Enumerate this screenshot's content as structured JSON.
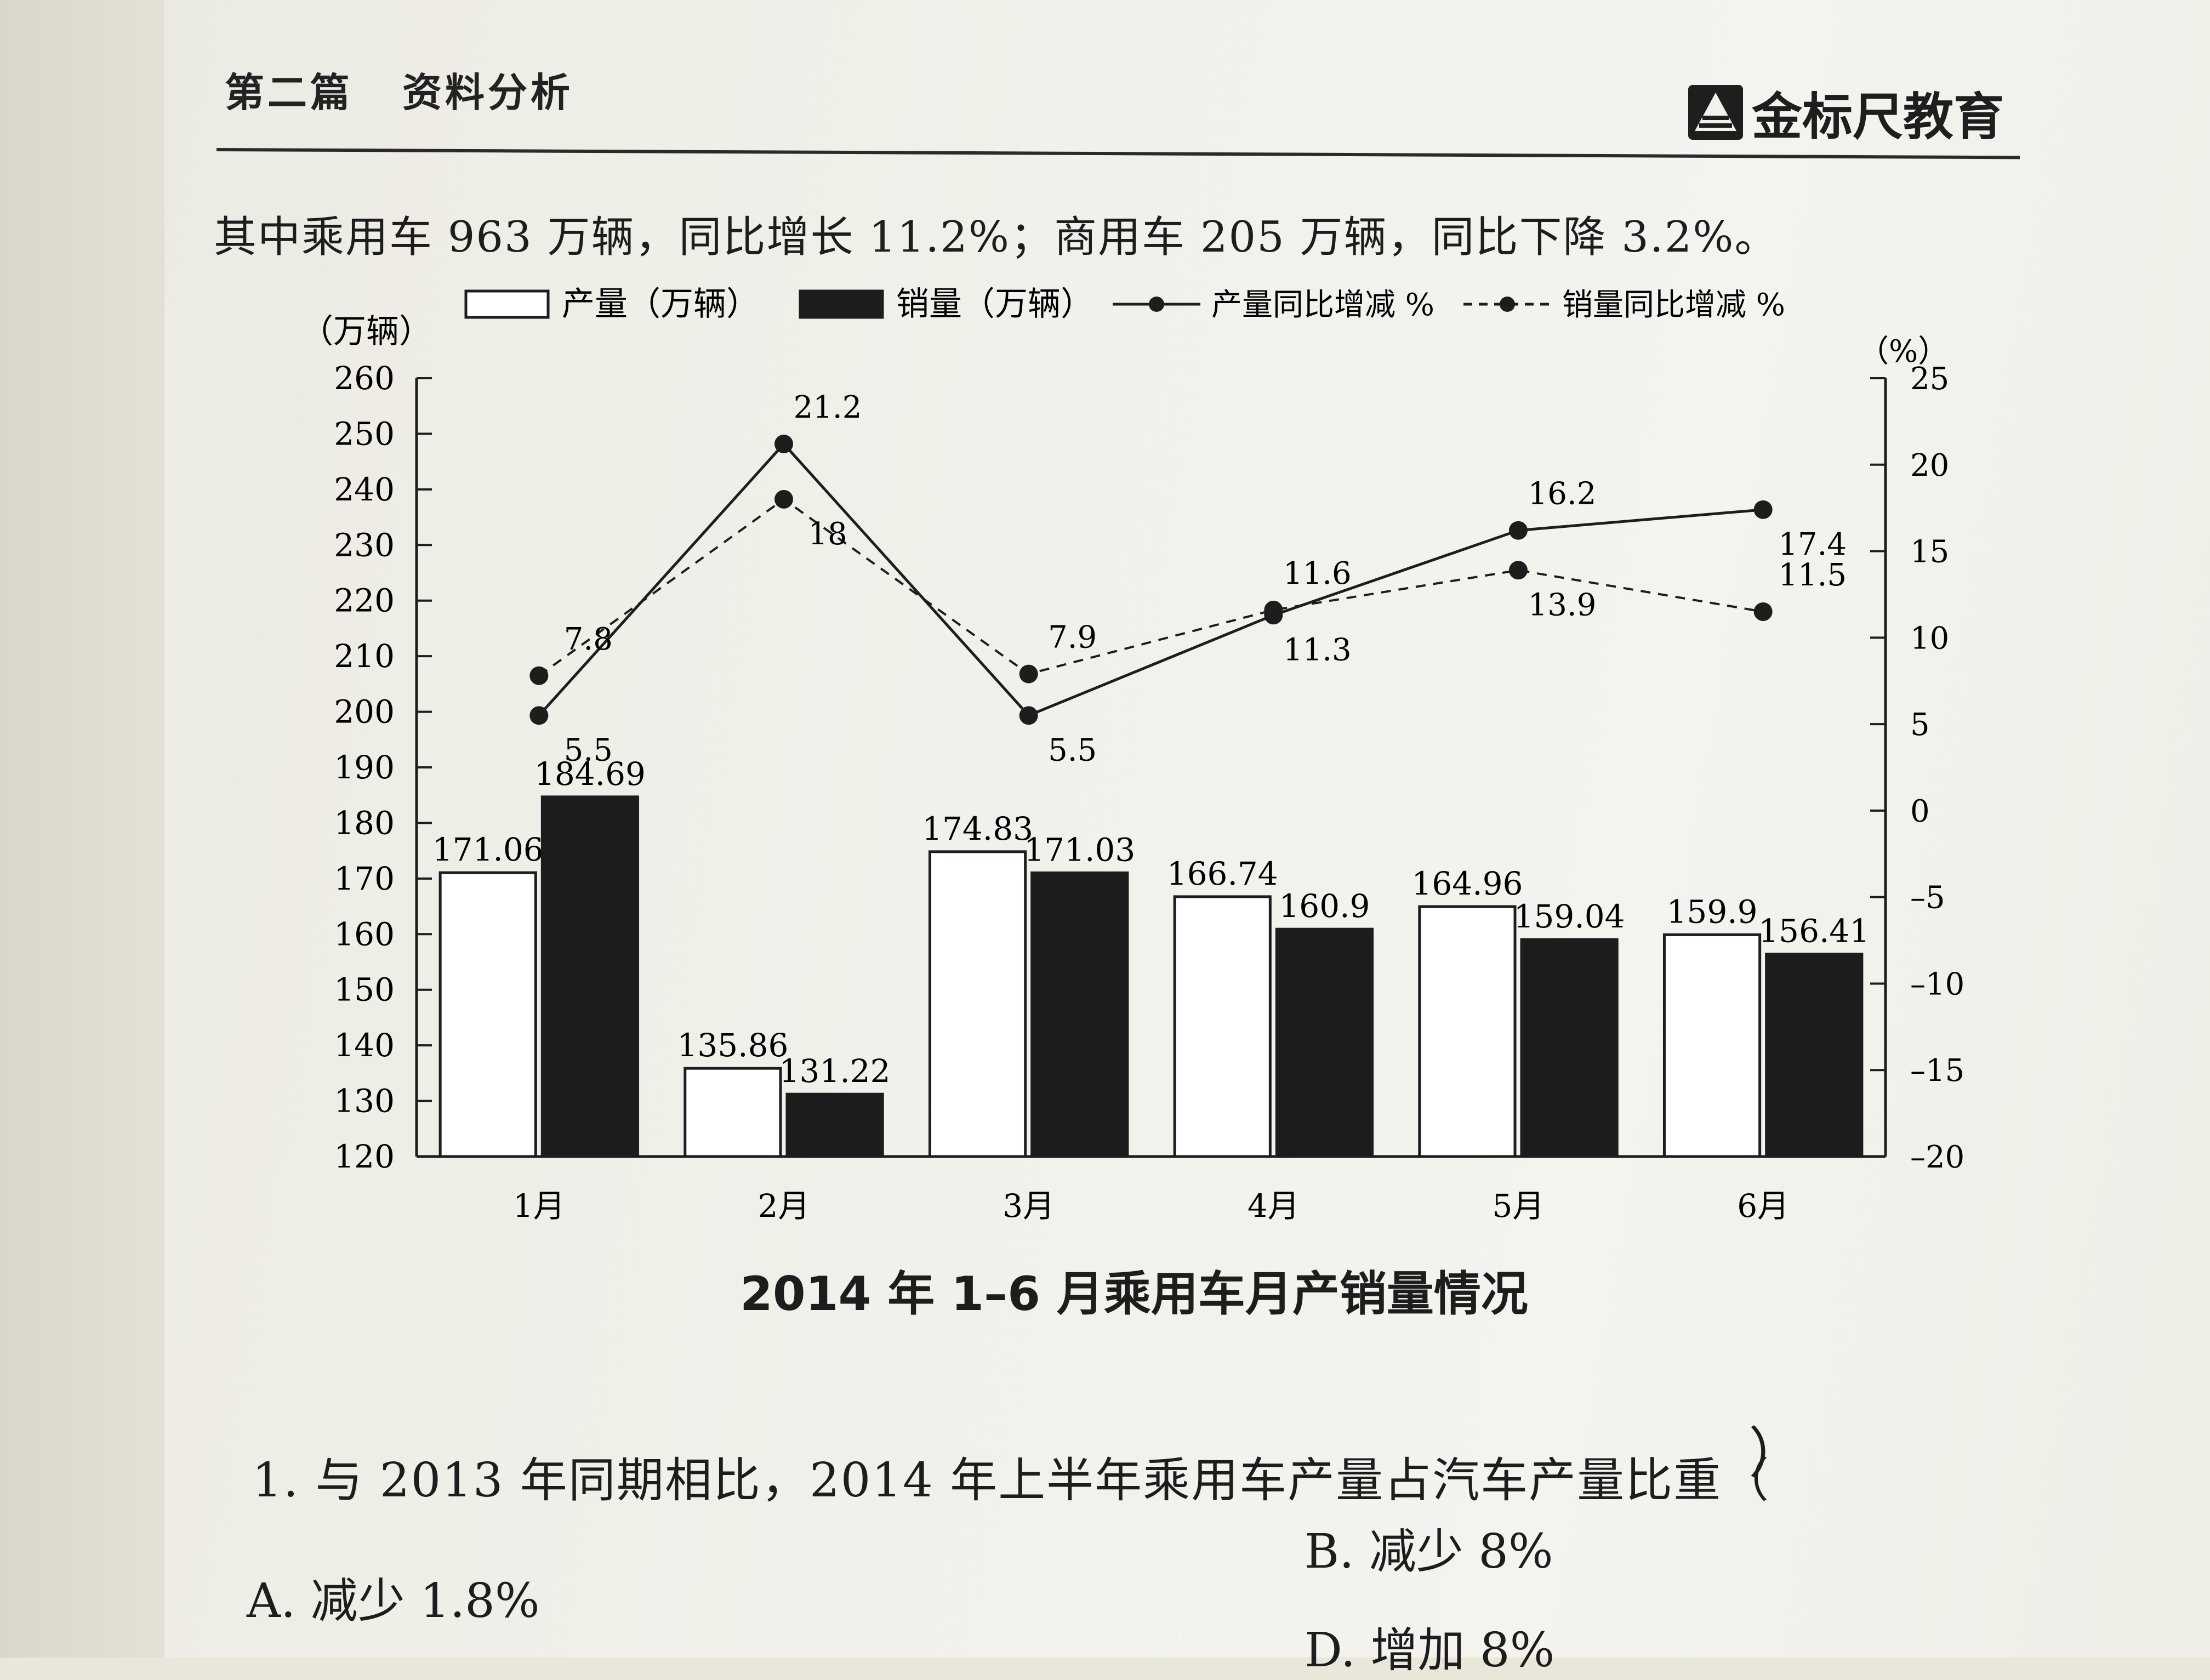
{
  "header": {
    "section": "第二篇",
    "subject": "资料分析",
    "logo_text": "金标尺教育"
  },
  "intro_text": "其中乘用车 963 万辆，同比增长 11.2%；商用车 205 万辆，同比下降 3.2%。",
  "chart_data": {
    "type": "bar+line",
    "title": "2014 年 1–6 月乘用车月产销量情况",
    "left_axis_label": "（万辆）",
    "right_axis_label": "（%）",
    "categories": [
      "1月",
      "2月",
      "3月",
      "4月",
      "5月",
      "6月"
    ],
    "left_ylim": [
      120,
      260
    ],
    "left_ticks": [
      120,
      130,
      140,
      150,
      160,
      170,
      180,
      190,
      200,
      210,
      220,
      230,
      240,
      250,
      260
    ],
    "right_ylim": [
      -20,
      25
    ],
    "right_ticks": [
      -20,
      -15,
      -10,
      -5,
      0,
      5,
      10,
      15,
      20,
      25
    ],
    "bar_series": [
      {
        "name": "产量（万辆）",
        "values": [
          171.06,
          135.86,
          174.83,
          166.74,
          164.96,
          159.9
        ],
        "labels": [
          "171.06",
          "135.86",
          "174.83",
          "166.74",
          "164.96",
          "159.9"
        ],
        "fill": "#ffffff"
      },
      {
        "name": "销量（万辆）",
        "values": [
          184.69,
          131.22,
          171.03,
          160.9,
          159.04,
          156.41
        ],
        "labels": [
          "184.69",
          "131.22",
          "171.03",
          "160.9",
          "159.04",
          "156.41"
        ],
        "fill": "#1c1c1c"
      }
    ],
    "line_series": [
      {
        "name": "产量同比增减 %",
        "values": [
          5.5,
          21.2,
          5.5,
          11.3,
          16.2,
          17.4
        ],
        "labels": [
          "5.5",
          "21.2",
          "5.5",
          "11.3",
          "16.2",
          "17.4"
        ],
        "style": "solid"
      },
      {
        "name": "销量同比增减 %",
        "values": [
          7.8,
          18,
          7.9,
          11.6,
          13.9,
          11.5
        ],
        "labels": [
          "7.8",
          "18",
          "7.9",
          "11.6",
          "13.9",
          "11.5"
        ],
        "style": "dashed"
      }
    ]
  },
  "question": {
    "text": "1. 与 2013 年同期相比，2014 年上半年乘用车产量占汽车产量比重（",
    "answer_paren": "）",
    "option_a": "A. 减少 1.8%",
    "option_b": "B. 减少 8%",
    "option_d": "D. 增加 8%"
  }
}
